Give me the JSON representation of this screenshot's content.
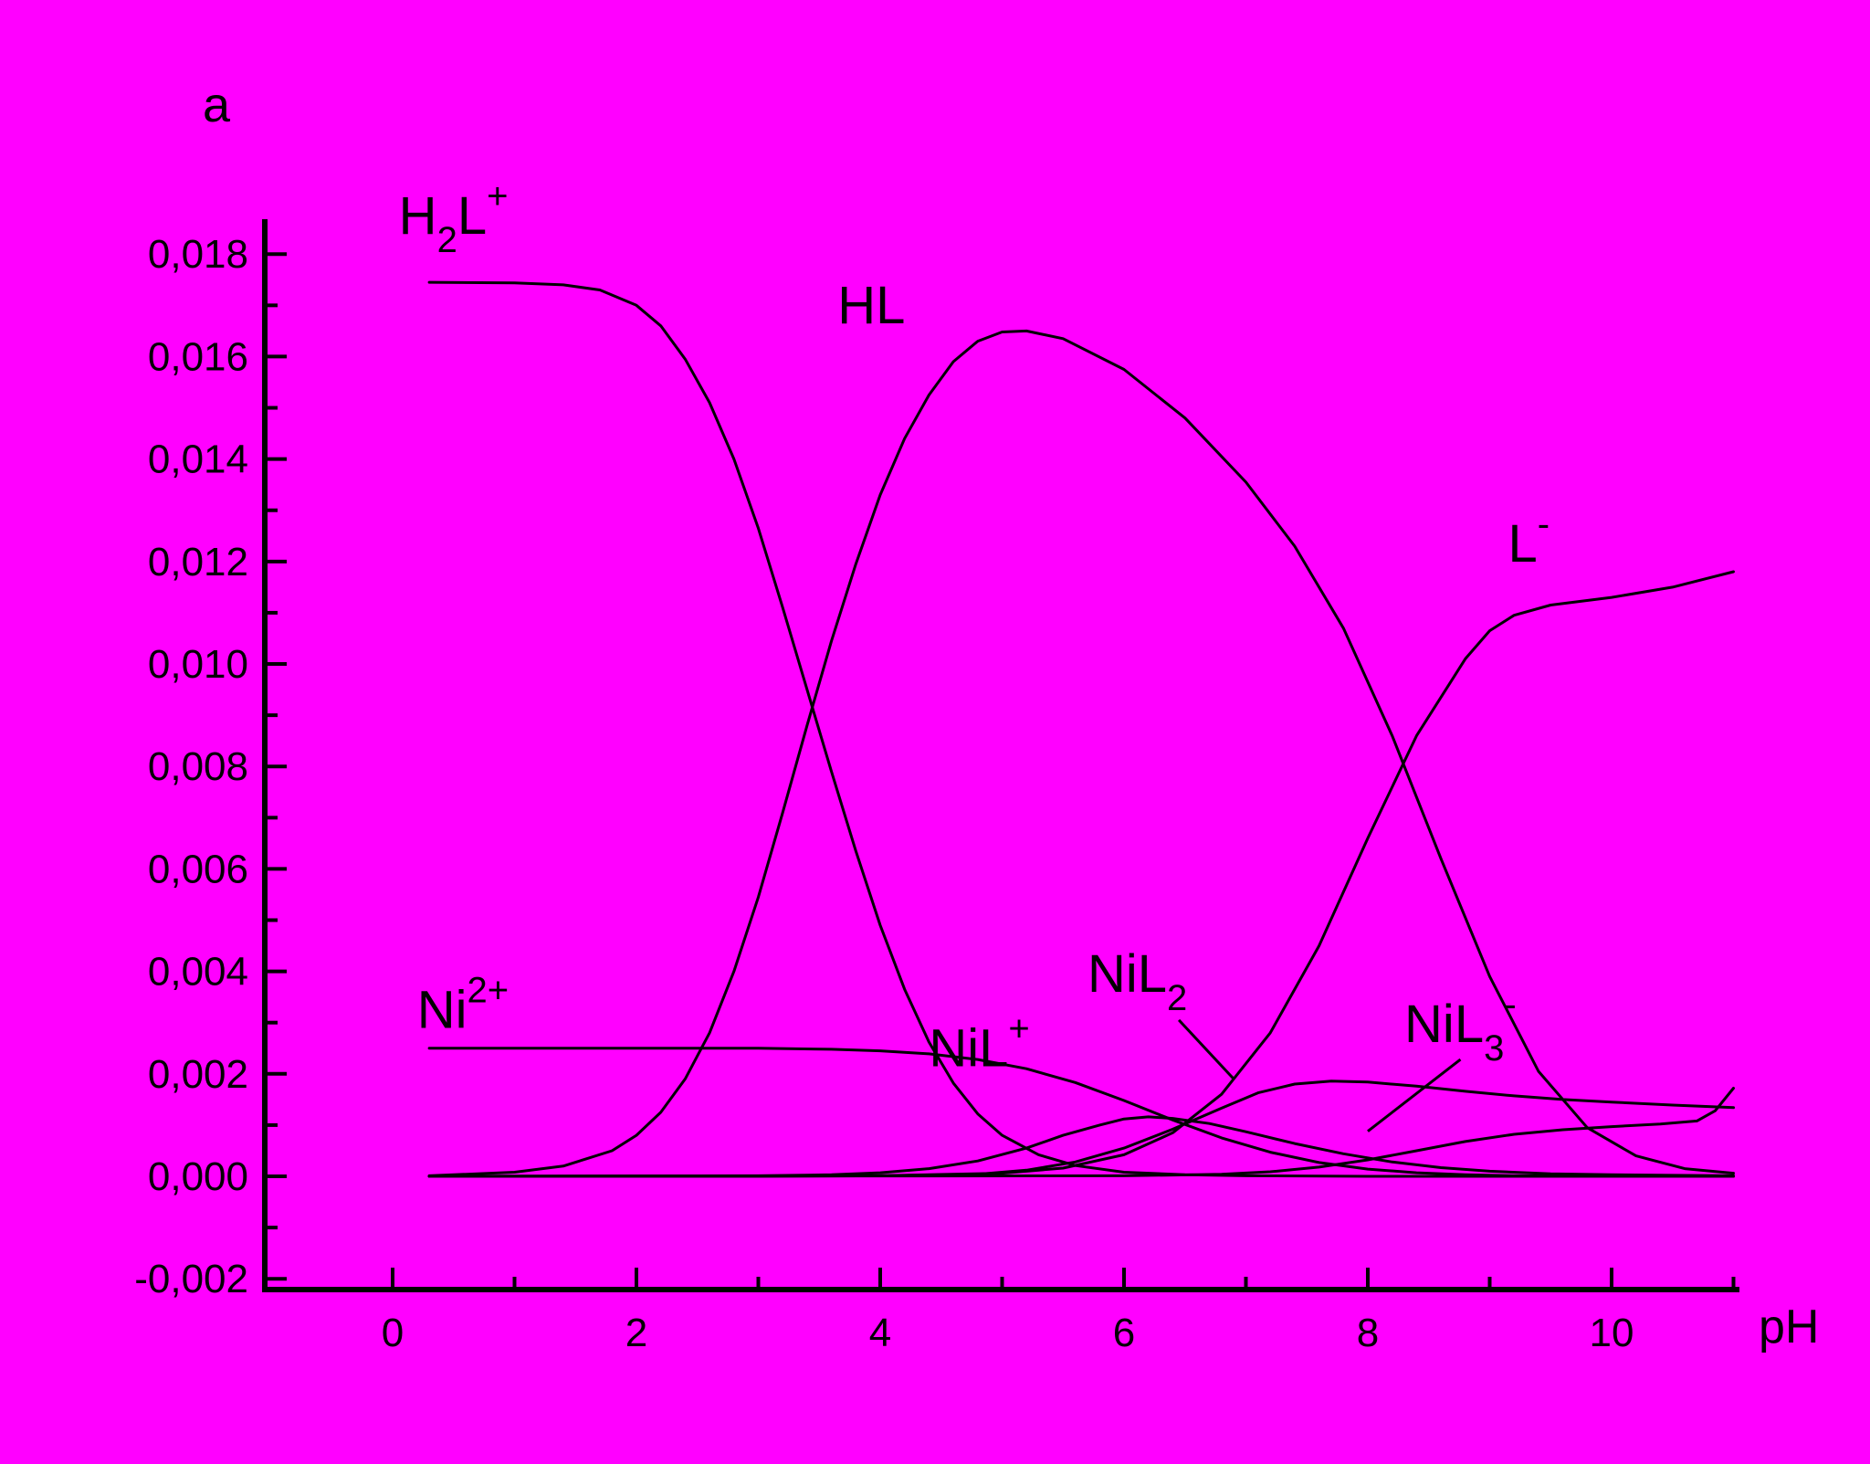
{
  "colors": {
    "background": "#FF00FF",
    "foreground": "#000000"
  },
  "chart_data": {
    "type": "line",
    "title": "",
    "xlabel": "pH",
    "ylabel": "a",
    "grid": false,
    "legend": "inline-annotations",
    "x_axis": {
      "label": "pH",
      "min": -1.05,
      "max": 11.05,
      "ticks": [
        0,
        2,
        4,
        6,
        8,
        10
      ],
      "tick_labels": [
        "0",
        "2",
        "4",
        "6",
        "8",
        "10"
      ],
      "minor_ticks": [
        1,
        3,
        5,
        7,
        9,
        11
      ]
    },
    "y_axis": {
      "label": "a",
      "min": -0.002,
      "max": 0.0185,
      "ticks": [
        -0.002,
        0.0,
        0.002,
        0.004,
        0.006,
        0.008,
        0.01,
        0.012,
        0.014,
        0.016,
        0.018
      ],
      "tick_labels": [
        "-0,002",
        "0,000",
        "0,002",
        "0,004",
        "0,006",
        "0,008",
        "0,010",
        "0,012",
        "0,014",
        "0,016",
        "0,018"
      ],
      "minor_ticks": [
        -0.001,
        0.001,
        0.003,
        0.005,
        0.007,
        0.009,
        0.011,
        0.013,
        0.015,
        0.017
      ]
    },
    "series": [
      {
        "id": "h2l",
        "label": "H2L+",
        "points": [
          [
            0.3,
            0.01745
          ],
          [
            1.0,
            0.01744
          ],
          [
            1.4,
            0.0174
          ],
          [
            1.7,
            0.0173
          ],
          [
            2.0,
            0.017
          ],
          [
            2.2,
            0.0166
          ],
          [
            2.4,
            0.01595
          ],
          [
            2.6,
            0.0151
          ],
          [
            2.8,
            0.014
          ],
          [
            3.0,
            0.01265
          ],
          [
            3.2,
            0.0111
          ],
          [
            3.4,
            0.0095
          ],
          [
            3.6,
            0.0079
          ],
          [
            3.8,
            0.00635
          ],
          [
            4.0,
            0.0049
          ],
          [
            4.2,
            0.00365
          ],
          [
            4.4,
            0.00262
          ],
          [
            4.6,
            0.00182
          ],
          [
            4.8,
            0.00122
          ],
          [
            5.0,
            0.0008
          ],
          [
            5.3,
            0.00042
          ],
          [
            5.6,
            0.00021
          ],
          [
            6.0,
            8e-05
          ],
          [
            6.5,
            3e-05
          ],
          [
            7.0,
            1e-05
          ],
          [
            8.0,
            0.0
          ],
          [
            9.5,
            0.0
          ],
          [
            11.0,
            0.0
          ]
        ]
      },
      {
        "id": "hl",
        "label": "HL",
        "points": [
          [
            0.3,
            1e-05
          ],
          [
            1.0,
            8e-05
          ],
          [
            1.4,
            0.0002
          ],
          [
            1.8,
            0.0005
          ],
          [
            2.0,
            0.0008
          ],
          [
            2.2,
            0.00125
          ],
          [
            2.4,
            0.0019
          ],
          [
            2.6,
            0.0028
          ],
          [
            2.8,
            0.004
          ],
          [
            3.0,
            0.00545
          ],
          [
            3.2,
            0.0071
          ],
          [
            3.4,
            0.0088
          ],
          [
            3.6,
            0.01045
          ],
          [
            3.8,
            0.01195
          ],
          [
            4.0,
            0.0133
          ],
          [
            4.2,
            0.0144
          ],
          [
            4.4,
            0.01525
          ],
          [
            4.6,
            0.0159
          ],
          [
            4.8,
            0.0163
          ],
          [
            5.0,
            0.01648
          ],
          [
            5.2,
            0.0165
          ],
          [
            5.5,
            0.01635
          ],
          [
            6.0,
            0.01575
          ],
          [
            6.5,
            0.0148
          ],
          [
            7.0,
            0.01355
          ],
          [
            7.4,
            0.0123
          ],
          [
            7.8,
            0.0107
          ],
          [
            8.2,
            0.0086
          ],
          [
            8.6,
            0.0062
          ],
          [
            9.0,
            0.0039
          ],
          [
            9.4,
            0.00205
          ],
          [
            9.8,
            0.00095
          ],
          [
            10.2,
            0.0004
          ],
          [
            10.6,
            0.00015
          ],
          [
            11.0,
            6e-05
          ]
        ]
      },
      {
        "id": "l",
        "label": "L-",
        "points": [
          [
            0.3,
            0.0
          ],
          [
            3.0,
            0.0
          ],
          [
            4.0,
            1e-05
          ],
          [
            5.0,
            6e-05
          ],
          [
            5.5,
            0.00016
          ],
          [
            6.0,
            0.00042
          ],
          [
            6.4,
            0.00085
          ],
          [
            6.8,
            0.0016
          ],
          [
            7.2,
            0.0028
          ],
          [
            7.6,
            0.0045
          ],
          [
            8.0,
            0.0066
          ],
          [
            8.4,
            0.0086
          ],
          [
            8.8,
            0.0101
          ],
          [
            9.0,
            0.01065
          ],
          [
            9.2,
            0.01095
          ],
          [
            9.5,
            0.01115
          ],
          [
            10.0,
            0.0113
          ],
          [
            10.5,
            0.0115
          ],
          [
            11.0,
            0.0118
          ]
        ]
      },
      {
        "id": "ni",
        "label": "Ni2+",
        "points": [
          [
            0.3,
            0.0025
          ],
          [
            2.0,
            0.0025
          ],
          [
            3.0,
            0.0025
          ],
          [
            3.6,
            0.00248
          ],
          [
            4.0,
            0.00245
          ],
          [
            4.4,
            0.00239
          ],
          [
            4.8,
            0.00228
          ],
          [
            5.2,
            0.0021
          ],
          [
            5.6,
            0.00183
          ],
          [
            6.0,
            0.00148
          ],
          [
            6.4,
            0.0011
          ],
          [
            6.8,
            0.00075
          ],
          [
            7.2,
            0.00047
          ],
          [
            7.6,
            0.00027
          ],
          [
            8.0,
            0.00014
          ],
          [
            8.4,
            7e-05
          ],
          [
            8.8,
            3e-05
          ],
          [
            9.2,
            1e-05
          ],
          [
            10.0,
            0.0
          ],
          [
            11.0,
            0.0
          ]
        ]
      },
      {
        "id": "nil",
        "label": "NiL+",
        "points": [
          [
            0.3,
            0.0
          ],
          [
            3.0,
            1e-05
          ],
          [
            3.6,
            3e-05
          ],
          [
            4.0,
            7e-05
          ],
          [
            4.4,
            0.00015
          ],
          [
            4.8,
            0.0003
          ],
          [
            5.2,
            0.00055
          ],
          [
            5.5,
            0.0008
          ],
          [
            5.8,
            0.001
          ],
          [
            6.0,
            0.00112
          ],
          [
            6.2,
            0.00116
          ],
          [
            6.4,
            0.00113
          ],
          [
            6.7,
            0.00103
          ],
          [
            7.0,
            0.00087
          ],
          [
            7.4,
            0.00064
          ],
          [
            7.8,
            0.00044
          ],
          [
            8.2,
            0.00028
          ],
          [
            8.6,
            0.00017
          ],
          [
            9.0,
            0.0001
          ],
          [
            9.5,
            5e-05
          ],
          [
            10.0,
            3e-05
          ],
          [
            10.5,
            2e-05
          ],
          [
            11.0,
            1e-05
          ]
        ]
      },
      {
        "id": "nil2",
        "label": "NiL2",
        "points": [
          [
            0.3,
            0.0
          ],
          [
            4.0,
            1e-05
          ],
          [
            4.8,
            4e-05
          ],
          [
            5.2,
            0.00012
          ],
          [
            5.6,
            0.00028
          ],
          [
            6.0,
            0.00055
          ],
          [
            6.4,
            0.00092
          ],
          [
            6.8,
            0.00133
          ],
          [
            7.1,
            0.00163
          ],
          [
            7.4,
            0.0018
          ],
          [
            7.7,
            0.00186
          ],
          [
            8.0,
            0.00184
          ],
          [
            8.4,
            0.00176
          ],
          [
            8.8,
            0.00166
          ],
          [
            9.2,
            0.00157
          ],
          [
            9.6,
            0.0015
          ],
          [
            10.0,
            0.00145
          ],
          [
            10.5,
            0.00139
          ],
          [
            11.0,
            0.00134
          ]
        ]
      },
      {
        "id": "nil3",
        "label": "NiL3-",
        "points": [
          [
            0.3,
            0.0
          ],
          [
            6.0,
            1e-05
          ],
          [
            6.8,
            4e-05
          ],
          [
            7.2,
            9e-05
          ],
          [
            7.6,
            0.00018
          ],
          [
            8.0,
            0.00032
          ],
          [
            8.4,
            0.0005
          ],
          [
            8.8,
            0.00068
          ],
          [
            9.2,
            0.00082
          ],
          [
            9.6,
            0.00091
          ],
          [
            10.0,
            0.00097
          ],
          [
            10.4,
            0.00102
          ],
          [
            10.7,
            0.00108
          ],
          [
            10.85,
            0.00128
          ],
          [
            11.0,
            0.00172
          ]
        ]
      }
    ],
    "annotations": [
      {
        "id": "h2l",
        "parts": [
          [
            "H"
          ],
          [
            "2",
            "sub"
          ],
          [
            "L"
          ],
          [
            "+",
            "sup"
          ]
        ],
        "x": 0.05,
        "y": 0.0184
      },
      {
        "id": "hl",
        "parts": [
          [
            "HL"
          ]
        ],
        "x": 3.65,
        "y": 0.01665
      },
      {
        "id": "l",
        "parts": [
          [
            "L"
          ],
          [
            "-",
            "sup"
          ]
        ],
        "x": 9.15,
        "y": 0.012
      },
      {
        "id": "ni",
        "parts": [
          [
            "Ni"
          ],
          [
            "2+",
            "sup"
          ]
        ],
        "x": 0.2,
        "y": 0.0029
      },
      {
        "id": "nil",
        "parts": [
          [
            "NiL"
          ],
          [
            "+",
            "sup"
          ]
        ],
        "x": 4.4,
        "y": 0.00215
      },
      {
        "id": "nil2",
        "parts": [
          [
            "NiL"
          ],
          [
            "2",
            "sub"
          ]
        ],
        "x": 5.7,
        "y": 0.0036,
        "leader": [
          [
            6.45,
            0.00305
          ],
          [
            6.9,
            0.0019
          ]
        ]
      },
      {
        "id": "nil3",
        "parts": [
          [
            "NiL"
          ],
          [
            "3",
            "sub"
          ],
          [
            "-",
            "sup"
          ]
        ],
        "x": 8.3,
        "y": 0.00262,
        "leader": [
          [
            8.76,
            0.00228
          ],
          [
            8.0,
            0.00088
          ]
        ]
      }
    ]
  }
}
